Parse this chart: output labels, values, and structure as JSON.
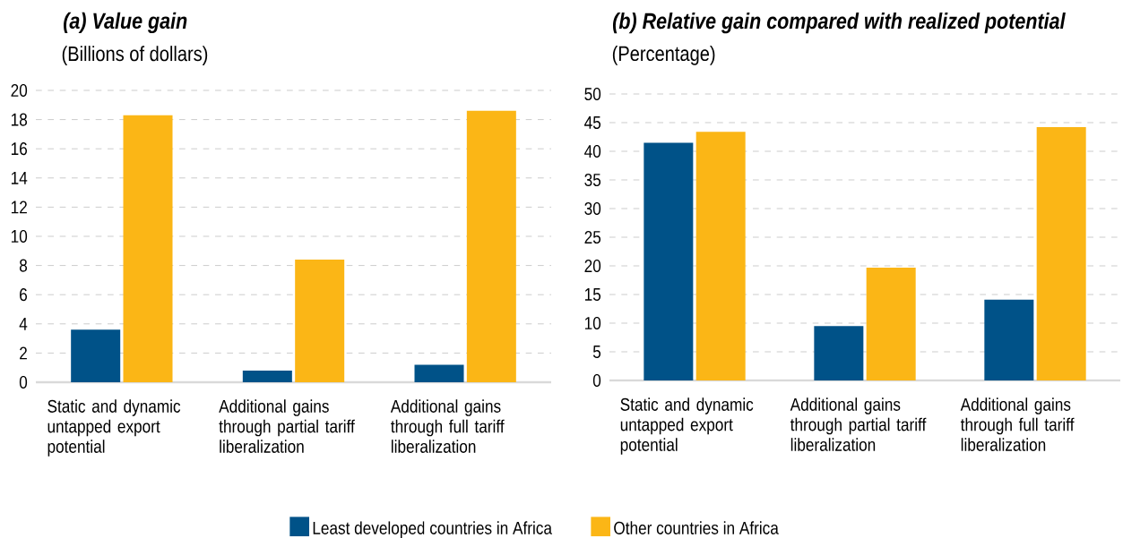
{
  "chart_data": [
    {
      "type": "bar",
      "title": "*(a) Value gain*",
      "subtitle": "(Billions of dollars)",
      "categories": [
        "Static and dynamic untapped export potential",
        "Additional gains through partial tariff liberalization",
        "Additional gains through full tariff liberalization"
      ],
      "series": [
        {
          "name": "Least developed countries in Africa",
          "color": "#005288",
          "values": [
            3.6,
            0.8,
            1.2
          ]
        },
        {
          "name": "Other countries in Africa",
          "color": "#fbb616",
          "values": [
            18.3,
            8.4,
            18.6
          ]
        }
      ],
      "ylim": [
        0,
        20
      ],
      "yticks": [
        0,
        2,
        4,
        6,
        8,
        10,
        12,
        14,
        16,
        18,
        20
      ],
      "grid": "y",
      "legend": "bottom"
    },
    {
      "type": "bar",
      "title": "*(b) Relative gain compared with realized potential*",
      "subtitle": "(Percentage)",
      "categories": [
        "Static and dynamic untapped export potential",
        "Additional gains through partial tariff liberalization",
        "Additional gains through full tariff liberalization"
      ],
      "series": [
        {
          "color": "#005288",
          "values": [
            41.5,
            9.5,
            14.1
          ]
        },
        {
          "color": "#fbb616",
          "values": [
            43.4,
            19.7,
            44.2
          ]
        }
      ],
      "ylim": [
        0,
        50
      ],
      "yticks": [
        0,
        5,
        10,
        15,
        20,
        25,
        30,
        35,
        40,
        45,
        50
      ],
      "grid": "y"
    }
  ]
}
